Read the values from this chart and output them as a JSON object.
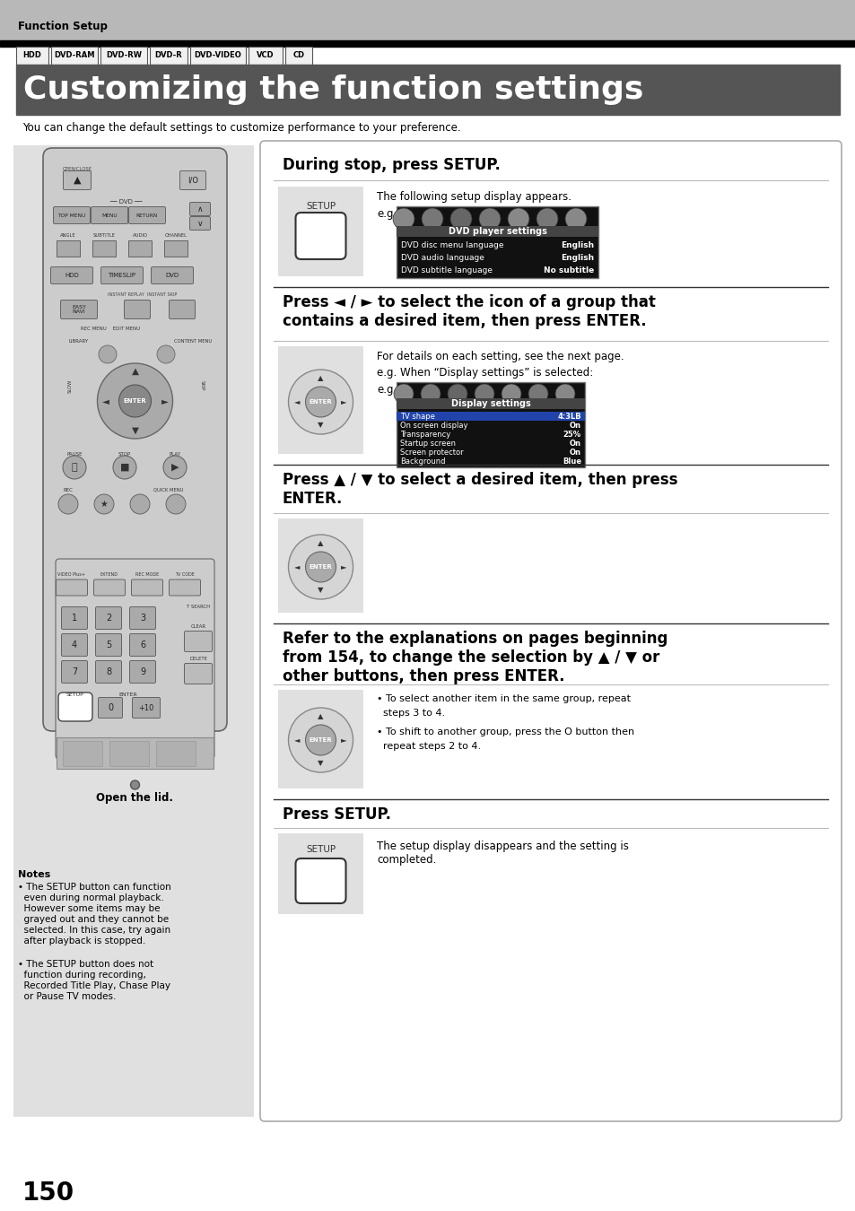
{
  "bg_color": "#ffffff",
  "header_bg": "#c0c0c0",
  "header_text": "Function Setup",
  "black_bar_color": "#000000",
  "tabs": [
    "HDD",
    "DVD-RAM",
    "DVD-RW",
    "DVD-R",
    "DVD-VIDEO",
    "VCD",
    "CD"
  ],
  "tab_widths": [
    36,
    52,
    52,
    42,
    62,
    38,
    30
  ],
  "title_bg": "#555555",
  "title_text": "Customizing the function settings",
  "title_color": "#ffffff",
  "subtitle_text": "You can change the default settings to customize performance to your preference.",
  "left_panel_bg": "#e0e0e0",
  "step1_heading": "During stop, press SETUP.",
  "step1_desc": "The following setup display appears.",
  "step1_eg": "e.g.",
  "dvd_settings_title": "DVD player settings",
  "dvd_settings_rows": [
    [
      "DVD disc menu language",
      "English"
    ],
    [
      "DVD audio language",
      "English"
    ],
    [
      "DVD subtitle language",
      "No subtitle"
    ]
  ],
  "step2_heading": "Press ◄ / ► to select the icon of a group that\ncontains a desired item, then press ENTER.",
  "step2_desc1": "For details on each setting, see the next page.",
  "step2_desc2": "e.g. When “Display settings” is selected:",
  "step2_eg": "e.g.",
  "display_settings_title": "Display settings",
  "display_settings_rows": [
    [
      "TV shape",
      "4:3LB",
      true
    ],
    [
      "On screen display",
      "On",
      false
    ],
    [
      "Transparency",
      "25%",
      false
    ],
    [
      "Startup screen",
      "On",
      false
    ],
    [
      "Screen protector",
      "On",
      false
    ],
    [
      "Background",
      "Blue",
      false
    ]
  ],
  "step3_heading": "Press ▲ / ▼ to select a desired item, then press\nENTER.",
  "step4_heading": "Refer to the explanations on pages beginning\nfrom 154, to change the selection by ▲ / ▼ or\nother buttons, then press ENTER.",
  "step4_bullet1": "To select another item in the same group, repeat\nsteps 3 to 4.",
  "step4_bullet2": "To shift to another group, press the O button then\nrepeat steps 2 to 4.",
  "step5_heading": "Press SETUP.",
  "step5_desc": "The setup display disappears and the setting is\ncompleted.",
  "notes_title": "Notes",
  "note1": "The SETUP button can function\neven during normal playback.\nHowever some items may be\ngrayed out and they cannot be\nselected. In this case, try again\nafter playback is stopped.",
  "note2": "The SETUP button does not\nfunction during recording,\nRecorded Title Play, Chase Play\nor Pause TV modes.",
  "open_lid": "Open the lid.",
  "page_number": "150"
}
